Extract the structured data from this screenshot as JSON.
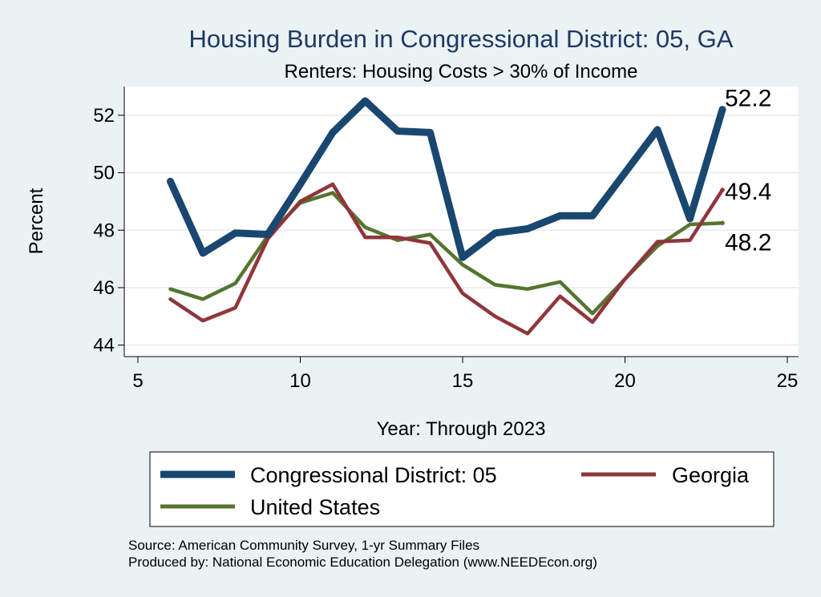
{
  "chart_data": {
    "type": "line",
    "title": "Housing Burden in Congressional District:  05, GA",
    "subtitle": "Renters: Housing Costs > 30% of Income",
    "xlabel": "Year: Through 2023",
    "ylabel": "Percent",
    "xlim": [
      5,
      25
    ],
    "ylim": [
      43.6,
      53.0
    ],
    "xticks": [
      5,
      10,
      15,
      20,
      25
    ],
    "yticks": [
      44,
      46,
      48,
      50,
      52
    ],
    "grid": true,
    "series": [
      {
        "name": "Congressional District:  05",
        "color": "#1a476f",
        "x": [
          6,
          7,
          8,
          9,
          10,
          11,
          12,
          13,
          14,
          15,
          16,
          17,
          18,
          19,
          20,
          21,
          22,
          23
        ],
        "values": [
          49.7,
          47.2,
          47.9,
          47.85,
          49.6,
          51.4,
          52.5,
          51.45,
          51.4,
          47.05,
          47.9,
          48.05,
          48.5,
          48.5,
          50.0,
          51.5,
          48.4,
          52.2
        ],
        "end_label": "52.2"
      },
      {
        "name": "Georgia",
        "color": "#90353b",
        "x": [
          6,
          7,
          8,
          9,
          10,
          11,
          12,
          13,
          14,
          15,
          16,
          17,
          18,
          19,
          20,
          21,
          22,
          23
        ],
        "values": [
          45.6,
          44.85,
          45.3,
          47.7,
          49.0,
          49.6,
          47.75,
          47.75,
          47.55,
          45.8,
          45.0,
          44.4,
          45.7,
          44.8,
          46.3,
          47.6,
          47.65,
          49.4
        ],
        "end_label": "49.4"
      },
      {
        "name": "United States",
        "color": "#55752f",
        "x": [
          6,
          7,
          8,
          9,
          10,
          11,
          12,
          13,
          14,
          15,
          16,
          17,
          18,
          19,
          20,
          21,
          22,
          23
        ],
        "values": [
          45.95,
          45.6,
          46.15,
          47.8,
          48.95,
          49.3,
          48.1,
          47.65,
          47.85,
          46.8,
          46.1,
          45.95,
          46.2,
          45.1,
          46.3,
          47.45,
          48.2,
          48.25
        ],
        "end_label": "48.2"
      }
    ],
    "legend_position": "bottom"
  },
  "source_lines": [
    "Source: American Community Survey, 1-yr Summary Files",
    "Produced by: National Economic Education Delegation (www.NEEDEcon.org)"
  ]
}
